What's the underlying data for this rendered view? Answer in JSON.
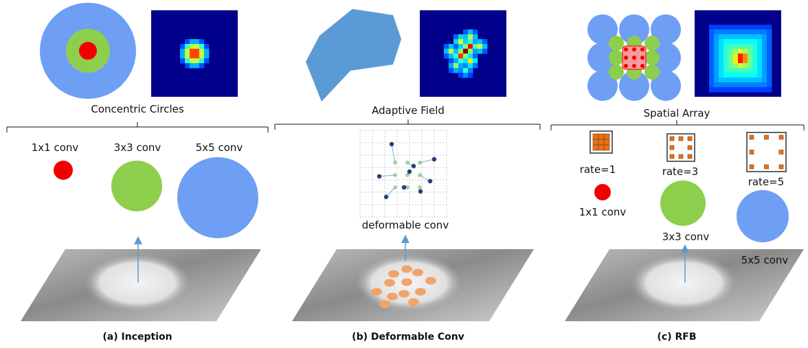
{
  "colors": {
    "blue": "#6f9ef5",
    "green": "#8dcf4c",
    "red": "#f20000",
    "orange": "#f2a36b",
    "heat_bg": "#00008b",
    "polygon": "#5b9bd5",
    "arrow": "#5b9bd5",
    "kernel_orange": "#e97018"
  },
  "panels": {
    "a": {
      "title": "Concentric Circles",
      "convs": [
        "1x1 conv",
        "3x3 conv",
        "5x5 conv"
      ],
      "caption": "(a) Inception"
    },
    "b": {
      "title": "Adaptive Field",
      "conv_label": "deformable conv",
      "caption": "(b) Deformable Conv"
    },
    "c": {
      "title": "Spatial Array",
      "rates": [
        "rate=1",
        "rate=3",
        "rate=5"
      ],
      "convs": [
        "1x1 conv",
        "3x3 conv",
        "5x5 conv"
      ],
      "caption": "(c) RFB"
    }
  }
}
